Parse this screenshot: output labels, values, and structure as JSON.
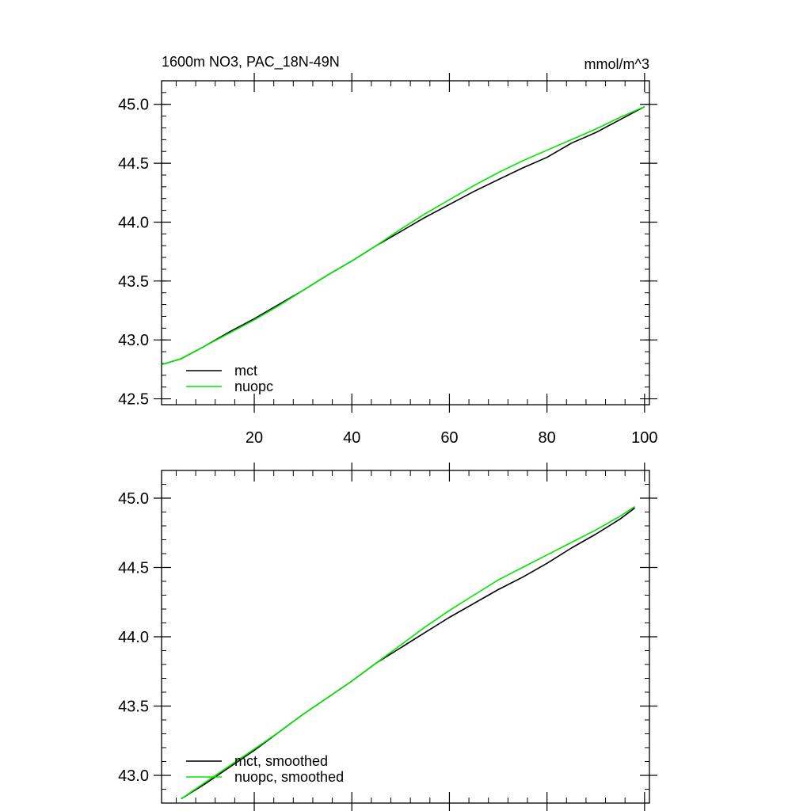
{
  "chart_data": [
    {
      "type": "line",
      "title": "1600m NO3, PAC_18N-49N",
      "units": "mmol/m^3",
      "xlim": [
        1,
        101
      ],
      "ylim": [
        42.45,
        45.2
      ],
      "xticks": [
        20,
        40,
        60,
        80,
        100
      ],
      "xtick_labels": [
        "20",
        "40",
        "60",
        "80",
        "100"
      ],
      "yticks": [
        42.5,
        43.0,
        43.5,
        44.0,
        44.5,
        45.0
      ],
      "ytick_labels": [
        "42.5",
        "43.0",
        "43.5",
        "44.0",
        "44.5",
        "45.0"
      ],
      "legend_position": "bottom-left",
      "series": [
        {
          "name": "mct",
          "color": "#000000",
          "x": [
            1,
            5,
            10,
            15,
            20,
            25,
            30,
            35,
            40,
            45,
            50,
            55,
            60,
            65,
            70,
            75,
            80,
            85,
            90,
            95,
            100
          ],
          "y": [
            42.79,
            42.84,
            42.95,
            43.07,
            43.18,
            43.3,
            43.42,
            43.55,
            43.67,
            43.8,
            43.92,
            44.04,
            44.15,
            44.26,
            44.36,
            44.46,
            44.55,
            44.67,
            44.76,
            44.87,
            44.98
          ]
        },
        {
          "name": "nuopc",
          "color": "#00e600",
          "x": [
            1,
            5,
            10,
            15,
            20,
            25,
            30,
            35,
            40,
            45,
            50,
            55,
            60,
            65,
            70,
            75,
            80,
            85,
            90,
            95,
            100
          ],
          "y": [
            42.79,
            42.84,
            42.95,
            43.06,
            43.17,
            43.29,
            43.42,
            43.55,
            43.67,
            43.8,
            43.94,
            44.07,
            44.19,
            44.31,
            44.42,
            44.52,
            44.61,
            44.7,
            44.79,
            44.89,
            44.98
          ]
        }
      ]
    },
    {
      "type": "line",
      "xlim": [
        1,
        101
      ],
      "ylim": [
        42.8,
        45.2
      ],
      "xticks": [
        20,
        40,
        60,
        80,
        100
      ],
      "yticks": [
        43.0,
        43.5,
        44.0,
        44.5,
        45.0
      ],
      "ytick_labels": [
        "43.0",
        "43.5",
        "44.0",
        "44.5",
        "45.0"
      ],
      "legend_position": "bottom-left",
      "series": [
        {
          "name": "mct, smoothed",
          "color": "#000000",
          "x": [
            5,
            10,
            15,
            20,
            25,
            30,
            35,
            40,
            45,
            50,
            55,
            60,
            65,
            70,
            75,
            80,
            85,
            90,
            95,
            98
          ],
          "y": [
            42.83,
            42.94,
            43.06,
            43.18,
            43.31,
            43.44,
            43.56,
            43.68,
            43.81,
            43.92,
            44.03,
            44.14,
            44.24,
            44.34,
            44.43,
            44.53,
            44.64,
            44.74,
            44.85,
            44.93
          ]
        },
        {
          "name": "nuopc, smoothed",
          "color": "#00e600",
          "x": [
            5,
            10,
            15,
            20,
            25,
            30,
            35,
            40,
            45,
            50,
            55,
            60,
            65,
            70,
            75,
            80,
            85,
            90,
            95,
            98
          ],
          "y": [
            42.83,
            42.95,
            43.07,
            43.19,
            43.31,
            43.44,
            43.56,
            43.68,
            43.81,
            43.94,
            44.07,
            44.19,
            44.3,
            44.41,
            44.5,
            44.59,
            44.68,
            44.77,
            44.87,
            44.94
          ]
        }
      ]
    }
  ]
}
